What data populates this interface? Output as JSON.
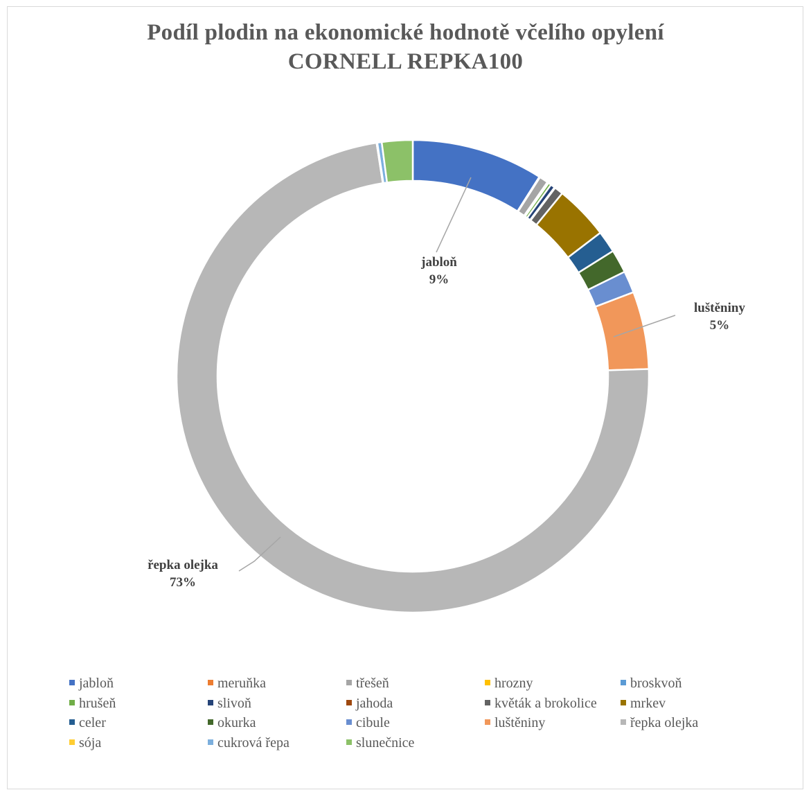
{
  "chart_data": {
    "type": "pie",
    "subtype": "doughnut",
    "title": "Podíl plodin na ekonomické hodnotě včelího opylení",
    "subtitle": "CORNELL REPKA100",
    "categories": [
      "jabloň",
      "meruňka",
      "třešeň",
      "hrozny",
      "broskvoň",
      "hrušeň",
      "slivoň",
      "jahoda",
      "květák a brokolice",
      "mrkev",
      "celer",
      "okurka",
      "cibule",
      "luštěniny",
      "řepka olejka",
      "sója",
      "cukrová řepa",
      "slunečnice"
    ],
    "values": [
      9.0,
      0.05,
      0.6,
      0.05,
      0.05,
      0.2,
      0.3,
      0.05,
      0.6,
      3.7,
      1.5,
      1.6,
      1.5,
      5.3,
      73.0,
      0.05,
      0.3,
      2.1
    ],
    "colors": [
      "#4472C4",
      "#ED7D31",
      "#A5A5A5",
      "#FFC000",
      "#5B9BD5",
      "#70AD47",
      "#264478",
      "#9E480E",
      "#636363",
      "#997300",
      "#255E91",
      "#43682B",
      "#698ED0",
      "#F1975A",
      "#B7B7B7",
      "#FFCD33",
      "#7CAFDD",
      "#8CC168"
    ],
    "data_labels": [
      {
        "category_index": 0,
        "name": "jabloň",
        "percent": "9%"
      },
      {
        "category_index": 13,
        "name": "luštěniny",
        "percent": "5%"
      },
      {
        "category_index": 14,
        "name": "řepka olejka",
        "percent": "73%"
      }
    ],
    "legend_position": "bottom"
  }
}
